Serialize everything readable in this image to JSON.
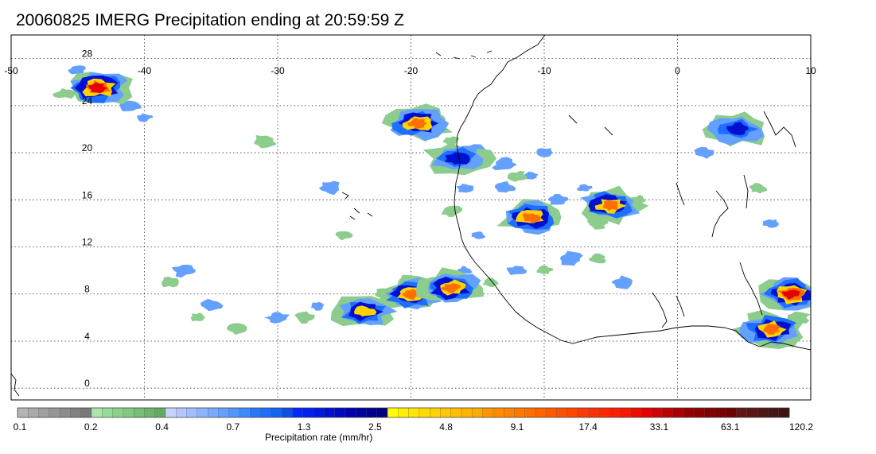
{
  "title": "20060825 IMERG Precipitation ending at 20:59:59 Z",
  "map": {
    "lon_range": [
      -50,
      10
    ],
    "lat_range": [
      -1,
      30
    ],
    "lon_ticks": [
      "-50",
      "-40",
      "-30",
      "-20",
      "-10",
      "0",
      "10"
    ],
    "lon_values": [
      -50,
      -40,
      -30,
      -20,
      -10,
      0,
      10
    ],
    "lat_ticks": [
      "0",
      "4",
      "8",
      "12",
      "16",
      "20",
      "24",
      "28"
    ],
    "lat_values": [
      0,
      4,
      8,
      12,
      16,
      20,
      24,
      28
    ],
    "grid": "dotted",
    "coastline_color": "#000000"
  },
  "colorbar": {
    "title": "Precipitation rate (mm/hr)",
    "labels": [
      "0.1",
      "0.2",
      "0.4",
      "0.7",
      "1.3",
      "2.5",
      "4.8",
      "9.1",
      "17.4",
      "33.1",
      "63.1",
      "120.2"
    ],
    "colors": [
      "#b4b4b4",
      "#aaaaaa",
      "#a0a0a0",
      "#969696",
      "#8c8c8c",
      "#828282",
      "#787878",
      "#aae6aa",
      "#96dc96",
      "#8cd28c",
      "#82c882",
      "#78be78",
      "#6eb46e",
      "#64aa64",
      "#c8d2ff",
      "#b4c8ff",
      "#a0beff",
      "#8cb4ff",
      "#78aaff",
      "#64a0ff",
      "#5096ff",
      "#3c8cff",
      "#2878ff",
      "#1e6eff",
      "#1464f0",
      "#0a50e6",
      "#0028ff",
      "#0020f0",
      "#0018e0",
      "#0010d0",
      "#0008c0",
      "#0000b0",
      "#0000a0",
      "#000090",
      "#000080",
      "#ffff00",
      "#fff000",
      "#ffe600",
      "#ffdc00",
      "#ffd200",
      "#ffc800",
      "#ffbe00",
      "#ffb400",
      "#ffaa00",
      "#ff9600",
      "#ff8c00",
      "#ff8200",
      "#ff7800",
      "#ff6e00",
      "#ff6400",
      "#ff5a00",
      "#ff5000",
      "#ff4600",
      "#ff3c00",
      "#ff3200",
      "#ff2800",
      "#ff1e00",
      "#ff1400",
      "#f00a00",
      "#e60000",
      "#d20000",
      "#be0000",
      "#aa0000",
      "#960000",
      "#8c0000",
      "#820000",
      "#780000",
      "#6e0000",
      "#641414",
      "#5a1414",
      "#501414",
      "#461414",
      "#3c1414"
    ]
  },
  "storms": [
    {
      "lon": -43.5,
      "lat": 25.5,
      "peak": "33.1"
    },
    {
      "lon": -19.5,
      "lat": 22.5,
      "peak": "9.1"
    },
    {
      "lon": -16.5,
      "lat": 19.5,
      "peak": "2.5"
    },
    {
      "lon": -11.0,
      "lat": 14.5,
      "peak": "9.1"
    },
    {
      "lon": -5.0,
      "lat": 15.5,
      "peak": "9.1"
    },
    {
      "lon": -20.0,
      "lat": 8.0,
      "peak": "9.1"
    },
    {
      "lon": -17.0,
      "lat": 8.5,
      "peak": "9.1"
    },
    {
      "lon": -23.5,
      "lat": 6.5,
      "peak": "4.8"
    },
    {
      "lon": 8.5,
      "lat": 8.0,
      "peak": "33.1"
    },
    {
      "lon": 7.0,
      "lat": 5.0,
      "peak": "9.1"
    },
    {
      "lon": 4.5,
      "lat": 22.0,
      "peak": "2.5"
    }
  ]
}
